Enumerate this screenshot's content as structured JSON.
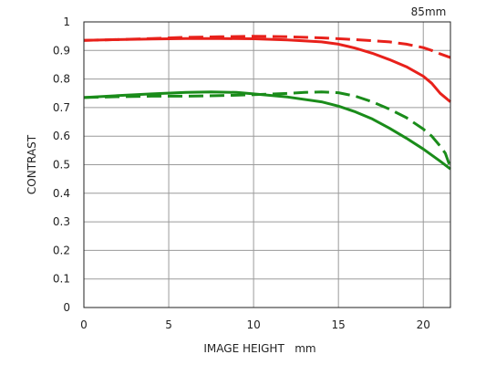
{
  "chart_data": {
    "type": "line",
    "title": "85mm",
    "xlabel": "IMAGE HEIGHT   mm",
    "ylabel": "CONTRAST",
    "xlim": [
      0,
      21.6
    ],
    "ylim": [
      0,
      1
    ],
    "xticks": [
      0,
      5,
      10,
      15,
      20
    ],
    "yticks": [
      0,
      0.1,
      0.2,
      0.3,
      0.4,
      0.5,
      0.6,
      0.7,
      0.8,
      0.9,
      1
    ],
    "ytick_labels": [
      "0",
      "0.1",
      "0.2",
      "0.3",
      "0.4",
      "0.5",
      "0.6",
      "0.7",
      "0.8",
      "0.9",
      "1"
    ],
    "grid": true,
    "series": [
      {
        "color": "#e8211b",
        "dash": "solid",
        "x": [
          0,
          2,
          4,
          6,
          8,
          10,
          12,
          14,
          15,
          16,
          17,
          18,
          19,
          20,
          20.5,
          21,
          21.6
        ],
        "y": [
          0.935,
          0.938,
          0.94,
          0.942,
          0.942,
          0.941,
          0.937,
          0.93,
          0.922,
          0.908,
          0.89,
          0.868,
          0.843,
          0.81,
          0.785,
          0.75,
          0.72
        ]
      },
      {
        "color": "#e8211b",
        "dash": "dashed",
        "x": [
          0,
          2,
          4,
          6,
          8,
          10,
          12,
          14,
          16,
          18,
          19,
          20,
          20.5,
          21,
          21.6
        ],
        "y": [
          0.935,
          0.938,
          0.942,
          0.946,
          0.948,
          0.95,
          0.948,
          0.944,
          0.938,
          0.93,
          0.922,
          0.91,
          0.9,
          0.888,
          0.875
        ]
      },
      {
        "color": "#1a8c1a",
        "dash": "solid",
        "x": [
          0,
          2,
          4,
          6,
          7.5,
          9,
          10,
          12,
          14,
          15,
          16,
          17,
          18,
          19,
          20,
          21,
          21.6
        ],
        "y": [
          0.735,
          0.742,
          0.748,
          0.753,
          0.755,
          0.753,
          0.748,
          0.737,
          0.72,
          0.705,
          0.685,
          0.66,
          0.628,
          0.593,
          0.555,
          0.512,
          0.485
        ]
      },
      {
        "color": "#1a8c1a",
        "dash": "dashed",
        "x": [
          0,
          2,
          4,
          6,
          8,
          10,
          12,
          13,
          14,
          15,
          16,
          17,
          18,
          19,
          20,
          20.5,
          21,
          21.3,
          21.6
        ],
        "y": [
          0.735,
          0.738,
          0.74,
          0.74,
          0.742,
          0.745,
          0.75,
          0.753,
          0.755,
          0.752,
          0.74,
          0.72,
          0.695,
          0.665,
          0.625,
          0.6,
          0.565,
          0.54,
          0.49
        ]
      }
    ]
  }
}
